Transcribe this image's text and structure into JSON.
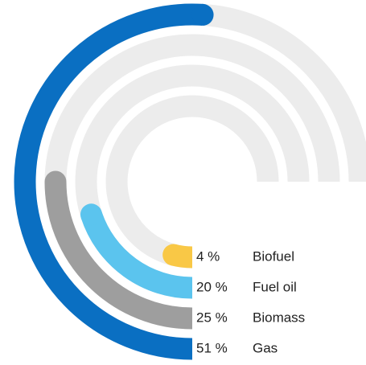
{
  "chart_data": {
    "type": "radial_bar",
    "categories": [
      "Biofuel",
      "Fuel oil",
      "Biomass",
      "Gas"
    ],
    "values": [
      4,
      20,
      25,
      51
    ],
    "value_labels": [
      "4 %",
      "20 %",
      "25 %",
      "51 %"
    ],
    "colors": [
      "#f9c846",
      "#5bc4ee",
      "#9e9e9e",
      "#0a6fc2"
    ],
    "track_color": "#ececec"
  }
}
